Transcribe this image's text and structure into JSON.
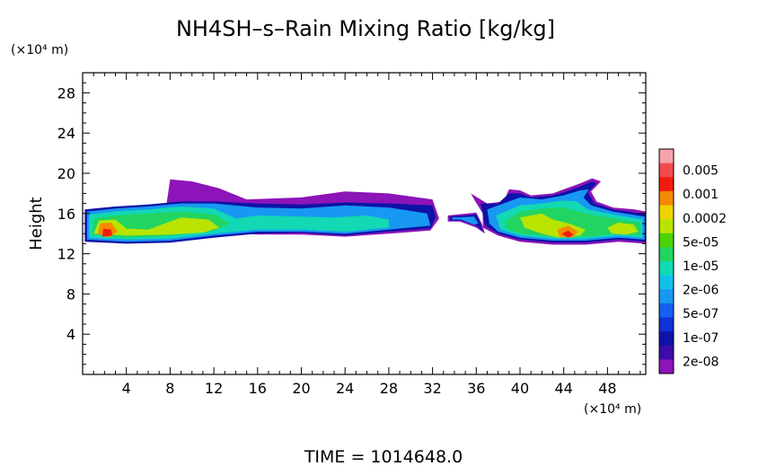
{
  "chart_data": {
    "type": "heatmap",
    "title": "NH4SH–s–Rain Mixing Ratio [kg/kg]",
    "ylabel": "Height",
    "x_unit": "(×10⁴ m)",
    "y_unit": "(×10⁴ m)",
    "xlim": [
      0,
      51.5
    ],
    "ylim": [
      0,
      30
    ],
    "x_ticks": [
      4,
      8,
      12,
      16,
      20,
      24,
      28,
      32,
      36,
      40,
      44,
      48
    ],
    "y_ticks": [
      4,
      8,
      12,
      16,
      20,
      24,
      28
    ],
    "colorbar": {
      "labels": [
        "0.005",
        "0.001",
        "0.0002",
        "5e-05",
        "1e-05",
        "2e-06",
        "5e-07",
        "1e-07",
        "2e-08"
      ],
      "colors_top_to_bottom": [
        "#f5a3a8",
        "#f04a4e",
        "#f21a10",
        "#f58a00",
        "#f0d200",
        "#b8e400",
        "#4cd200",
        "#22d460",
        "#12d8b4",
        "#10c0ec",
        "#1898f2",
        "#1460f0",
        "#1030d8",
        "#0e12a8",
        "#3c0ca8",
        "#8c14b8"
      ]
    },
    "regions": [
      {
        "level": "2e-08",
        "points": [
          [
            7.5,
            15.6
          ],
          [
            8,
            19.4
          ],
          [
            10,
            19.2
          ],
          [
            12.5,
            18.5
          ],
          [
            15,
            17.4
          ],
          [
            20,
            17.6
          ],
          [
            24,
            18.2
          ],
          [
            28,
            18.0
          ],
          [
            32,
            17.4
          ],
          [
            32.6,
            15.5
          ],
          [
            31.8,
            14.3
          ],
          [
            28,
            14.0
          ],
          [
            24,
            13.7
          ],
          [
            20,
            13.9
          ],
          [
            16,
            13.9
          ],
          [
            12,
            14.2
          ],
          [
            9,
            14.5
          ]
        ]
      },
      {
        "level": "1e-07",
        "points": [
          [
            0.2,
            13.2
          ],
          [
            0.2,
            16.4
          ],
          [
            3,
            16.7
          ],
          [
            6,
            16.9
          ],
          [
            9,
            17.2
          ],
          [
            12,
            17.2
          ],
          [
            16,
            17.0
          ],
          [
            20,
            16.9
          ],
          [
            24,
            17.1
          ],
          [
            28,
            17.0
          ],
          [
            32,
            16.8
          ],
          [
            32.3,
            15.6
          ],
          [
            31.8,
            14.5
          ],
          [
            28,
            14.2
          ],
          [
            24,
            13.8
          ],
          [
            20,
            14.1
          ],
          [
            16,
            14.0
          ],
          [
            12,
            13.6
          ],
          [
            8,
            13.1
          ],
          [
            4,
            13.0
          ]
        ]
      },
      {
        "level": "5e-07",
        "points": [
          [
            0.4,
            13.4
          ],
          [
            0.4,
            16.2
          ],
          [
            3,
            16.5
          ],
          [
            6,
            16.7
          ],
          [
            9,
            17.0
          ],
          [
            12,
            17.0
          ],
          [
            16,
            16.6
          ],
          [
            20,
            16.5
          ],
          [
            24,
            16.8
          ],
          [
            28,
            16.6
          ],
          [
            31.5,
            16.0
          ],
          [
            31.8,
            14.8
          ],
          [
            28,
            14.4
          ],
          [
            24,
            14.0
          ],
          [
            20,
            14.2
          ],
          [
            16,
            14.2
          ],
          [
            12,
            13.8
          ],
          [
            8,
            13.3
          ],
          [
            4,
            13.2
          ]
        ]
      },
      {
        "level": "2e-06",
        "points": [
          [
            0.6,
            13.6
          ],
          [
            0.6,
            15.9
          ],
          [
            3,
            16.2
          ],
          [
            6,
            16.4
          ],
          [
            9,
            16.7
          ],
          [
            12,
            16.5
          ],
          [
            14,
            15.5
          ],
          [
            16,
            15.8
          ],
          [
            20,
            15.7
          ],
          [
            23,
            15.6
          ],
          [
            26,
            15.8
          ],
          [
            28,
            15.4
          ],
          [
            28,
            14.6
          ],
          [
            24,
            14.2
          ],
          [
            20,
            14.4
          ],
          [
            16,
            14.4
          ],
          [
            12,
            14.0
          ],
          [
            8,
            13.5
          ],
          [
            4,
            13.4
          ]
        ]
      },
      {
        "level": "1e-05",
        "points": [
          [
            0.9,
            13.9
          ],
          [
            1,
            15.5
          ],
          [
            3,
            15.8
          ],
          [
            6,
            16.0
          ],
          [
            9,
            16.2
          ],
          [
            12,
            15.9
          ],
          [
            13.5,
            15.0
          ],
          [
            12,
            14.3
          ],
          [
            8,
            13.8
          ],
          [
            4,
            13.6
          ]
        ]
      },
      {
        "level": "5e-05",
        "points": [
          [
            1,
            14.0
          ],
          [
            1.5,
            15.3
          ],
          [
            3,
            15.4
          ],
          [
            4,
            14.5
          ],
          [
            6,
            14.4
          ],
          [
            7.5,
            15.0
          ],
          [
            9,
            15.6
          ],
          [
            11.5,
            15.4
          ],
          [
            12.5,
            14.6
          ],
          [
            11,
            14.1
          ],
          [
            8,
            13.9
          ],
          [
            4,
            13.8
          ]
        ]
      },
      {
        "level": "0.0002",
        "points": [
          [
            1.4,
            14.0
          ],
          [
            1.6,
            15.0
          ],
          [
            2.6,
            15.1
          ],
          [
            3.2,
            14.2
          ],
          [
            2.4,
            13.6
          ]
        ]
      },
      {
        "level": "0.001",
        "points": [
          [
            1.8,
            13.7
          ],
          [
            1.9,
            14.5
          ],
          [
            2.6,
            14.4
          ],
          [
            2.7,
            13.8
          ]
        ]
      },
      {
        "level": "2e-08",
        "points": [
          [
            33.4,
            15.8
          ],
          [
            36,
            16.1
          ],
          [
            36.5,
            15.0
          ],
          [
            36.8,
            14.0
          ],
          [
            36,
            14.6
          ],
          [
            34.5,
            15.2
          ],
          [
            33.4,
            15.2
          ]
        ]
      },
      {
        "level": "1e-07",
        "points": [
          [
            33.6,
            15.7
          ],
          [
            36,
            15.9
          ],
          [
            36.4,
            15.0
          ],
          [
            36.6,
            14.2
          ],
          [
            36,
            14.8
          ],
          [
            34.6,
            15.3
          ],
          [
            33.6,
            15.3
          ]
        ]
      },
      {
        "level": "5e-07",
        "points": [
          [
            33.8,
            15.6
          ],
          [
            35.8,
            15.7
          ],
          [
            36.2,
            15.0
          ],
          [
            35.8,
            14.9
          ],
          [
            34.6,
            15.4
          ],
          [
            33.8,
            15.4
          ]
        ]
      },
      {
        "level": "2e-08",
        "points": [
          [
            35.5,
            18.0
          ],
          [
            37,
            17.0
          ],
          [
            38.5,
            17.2
          ],
          [
            39,
            18.4
          ],
          [
            40,
            18.3
          ],
          [
            41,
            17.8
          ],
          [
            43,
            18.0
          ],
          [
            44,
            18.4
          ],
          [
            45.5,
            19.0
          ],
          [
            46.6,
            19.5
          ],
          [
            47.4,
            19.2
          ],
          [
            46.5,
            18.2
          ],
          [
            47,
            17.2
          ],
          [
            48.5,
            16.6
          ],
          [
            50.5,
            16.4
          ],
          [
            51.5,
            16.2
          ],
          [
            51.5,
            13.0
          ],
          [
            49,
            13.2
          ],
          [
            46,
            12.9
          ],
          [
            43,
            12.9
          ],
          [
            40,
            13.2
          ],
          [
            38,
            13.8
          ],
          [
            36.6,
            14.6
          ],
          [
            36.6,
            16.0
          ],
          [
            35.8,
            17.4
          ]
        ]
      },
      {
        "level": "1e-07",
        "points": [
          [
            36.4,
            17.0
          ],
          [
            38,
            17.0
          ],
          [
            39,
            18.0
          ],
          [
            40,
            18.0
          ],
          [
            41,
            17.6
          ],
          [
            43,
            17.8
          ],
          [
            44,
            18.1
          ],
          [
            45.5,
            18.7
          ],
          [
            46.6,
            19.2
          ],
          [
            47,
            19.0
          ],
          [
            46.2,
            18.1
          ],
          [
            46.8,
            17.0
          ],
          [
            48.5,
            16.4
          ],
          [
            50.5,
            16.1
          ],
          [
            51.5,
            15.9
          ],
          [
            51.5,
            13.2
          ],
          [
            49,
            13.4
          ],
          [
            46,
            13.1
          ],
          [
            43,
            13.1
          ],
          [
            40,
            13.4
          ],
          [
            38,
            14.0
          ],
          [
            36.8,
            14.8
          ]
        ]
      },
      {
        "level": "5e-07",
        "points": [
          [
            37,
            16.4
          ],
          [
            39,
            17.2
          ],
          [
            40,
            17.6
          ],
          [
            42,
            17.4
          ],
          [
            44,
            17.8
          ],
          [
            45.5,
            18.3
          ],
          [
            46.3,
            18.4
          ],
          [
            45.8,
            17.6
          ],
          [
            46.5,
            16.8
          ],
          [
            48.5,
            16.2
          ],
          [
            51.4,
            15.7
          ],
          [
            51.4,
            13.4
          ],
          [
            49,
            13.6
          ],
          [
            46,
            13.3
          ],
          [
            43,
            13.3
          ],
          [
            40,
            13.6
          ],
          [
            38,
            14.2
          ],
          [
            37.2,
            15.0
          ]
        ]
      },
      {
        "level": "2e-06",
        "points": [
          [
            37.8,
            15.8
          ],
          [
            40,
            16.8
          ],
          [
            42,
            17.0
          ],
          [
            44,
            17.3
          ],
          [
            45.2,
            17.2
          ],
          [
            46.2,
            16.4
          ],
          [
            48.5,
            15.9
          ],
          [
            51.2,
            15.4
          ],
          [
            51.2,
            13.6
          ],
          [
            49,
            13.8
          ],
          [
            46,
            13.5
          ],
          [
            43,
            13.5
          ],
          [
            40,
            13.8
          ],
          [
            38.2,
            14.4
          ]
        ]
      },
      {
        "level": "1e-05",
        "points": [
          [
            38.6,
            15.2
          ],
          [
            40,
            16.2
          ],
          [
            42,
            16.5
          ],
          [
            44,
            16.6
          ],
          [
            46,
            16.0
          ],
          [
            48.5,
            15.5
          ],
          [
            51,
            15.1
          ],
          [
            51,
            13.8
          ],
          [
            49,
            14.0
          ],
          [
            46,
            13.7
          ],
          [
            43,
            13.7
          ],
          [
            40,
            14.0
          ],
          [
            38.8,
            14.5
          ]
        ]
      },
      {
        "level": "5e-05",
        "points": [
          [
            40,
            15.6
          ],
          [
            42,
            16.0
          ],
          [
            43,
            15.4
          ],
          [
            44.5,
            15.0
          ],
          [
            46,
            14.4
          ],
          [
            45.5,
            13.8
          ],
          [
            43.5,
            13.6
          ],
          [
            42,
            14.0
          ],
          [
            40.4,
            14.6
          ]
        ]
      },
      {
        "level": "5e-05",
        "points": [
          [
            48,
            14.6
          ],
          [
            49,
            15.1
          ],
          [
            50.4,
            14.9
          ],
          [
            50.8,
            14.2
          ],
          [
            49.8,
            13.9
          ],
          [
            48.4,
            14.0
          ]
        ]
      },
      {
        "level": "0.0002",
        "points": [
          [
            43.4,
            14.4
          ],
          [
            44.4,
            14.8
          ],
          [
            45.3,
            14.2
          ],
          [
            44.8,
            13.6
          ],
          [
            43.6,
            13.7
          ]
        ]
      },
      {
        "level": "0.001",
        "points": [
          [
            43.8,
            14.0
          ],
          [
            44.4,
            14.3
          ],
          [
            44.9,
            13.9
          ],
          [
            44.4,
            13.6
          ]
        ]
      }
    ]
  },
  "time_label": "TIME = 1014648.0"
}
